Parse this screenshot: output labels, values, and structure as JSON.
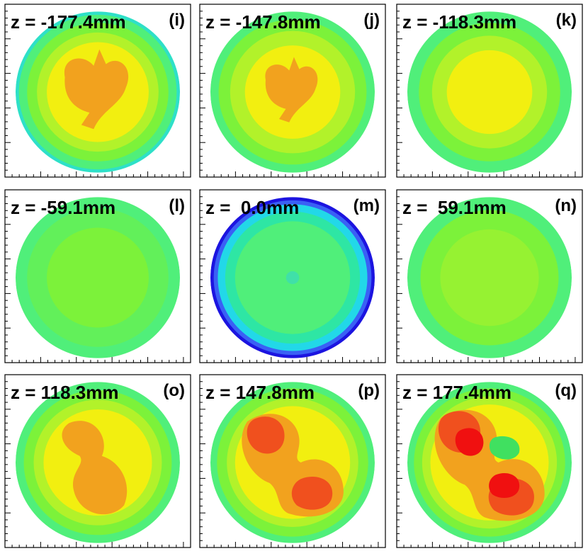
{
  "figure": "grid of 9 cross-sectional colour maps",
  "chart_data": [
    {
      "type": "heatmap",
      "label": "(i)",
      "z_text": "z = -177.4mm",
      "z_mm": -177.4,
      "layers": [
        {
          "color": "#2ee0c8",
          "r": 1.0
        },
        {
          "color": "#50ef7a",
          "r": 0.96
        },
        {
          "color": "#7cf23a",
          "r": 0.86
        },
        {
          "color": "#b2f22a",
          "r": 0.74
        },
        {
          "color": "#f2ef10",
          "r": 0.62
        },
        {
          "color": "#f2a21e",
          "blob": "heart",
          "scale": 1.0
        }
      ]
    },
    {
      "type": "heatmap",
      "label": "(j)",
      "z_text": "z = -147.8mm",
      "z_mm": -147.8,
      "layers": [
        {
          "color": "#50ef7a",
          "r": 1.0
        },
        {
          "color": "#7cf23a",
          "r": 0.9
        },
        {
          "color": "#b2f22a",
          "r": 0.76
        },
        {
          "color": "#f2ef10",
          "r": 0.58
        },
        {
          "color": "#f2a21e",
          "blob": "heart",
          "scale": 0.82
        }
      ]
    },
    {
      "type": "heatmap",
      "label": "(k)",
      "z_text": "z = -118.3mm",
      "z_mm": -118.3,
      "layers": [
        {
          "color": "#50ef7a",
          "r": 1.0
        },
        {
          "color": "#7cf23a",
          "r": 0.86
        },
        {
          "color": "#b2f22a",
          "r": 0.7
        },
        {
          "color": "#f2ef10",
          "r": 0.52
        }
      ]
    },
    {
      "type": "heatmap",
      "label": "(l)",
      "z_text": "z = -59.1mm",
      "z_mm": -59.1,
      "layers": [
        {
          "color": "#50ef7a",
          "r": 1.0
        },
        {
          "color": "#62f05a",
          "r": 0.86
        },
        {
          "color": "#7cf23a",
          "r": 0.62
        }
      ]
    },
    {
      "type": "heatmap",
      "label": "(m)",
      "z_text": "z =  0.0mm",
      "z_mm": 0.0,
      "layers": [
        {
          "color": "#1c14e0",
          "r": 1.0
        },
        {
          "color": "#3a60f5",
          "r": 0.96
        },
        {
          "color": "#22d8e8",
          "r": 0.91
        },
        {
          "color": "#2ee6a4",
          "r": 0.82
        },
        {
          "color": "#50ef7a",
          "r": 0.7
        },
        {
          "color": "#40e0a8",
          "r": 0.08
        }
      ]
    },
    {
      "type": "heatmap",
      "label": "(n)",
      "z_text": "z =  59.1mm",
      "z_mm": 59.1,
      "layers": [
        {
          "color": "#50ef7a",
          "r": 1.0
        },
        {
          "color": "#7cf23a",
          "r": 0.84
        },
        {
          "color": "#96f232",
          "r": 0.6
        }
      ]
    },
    {
      "type": "heatmap",
      "label": "(o)",
      "z_text": "z = 118.3mm",
      "z_mm": 118.3,
      "layers": [
        {
          "color": "#50ef7a",
          "r": 1.0
        },
        {
          "color": "#7cf23a",
          "r": 0.9
        },
        {
          "color": "#b2f22a",
          "r": 0.78
        },
        {
          "color": "#f2ef10",
          "r": 0.66
        },
        {
          "color": "#f2a21e",
          "blob": "peanut",
          "scale": 1.0
        }
      ]
    },
    {
      "type": "heatmap",
      "label": "(p)",
      "z_text": "z = 147.8mm",
      "z_mm": 147.8,
      "layers": [
        {
          "color": "#50ef7a",
          "r": 1.0
        },
        {
          "color": "#7cf23a",
          "r": 0.92
        },
        {
          "color": "#b2f22a",
          "r": 0.8
        },
        {
          "color": "#f2ef10",
          "r": 0.7
        },
        {
          "color": "#f2a21e",
          "blob": "pac",
          "scale": 1.0
        },
        {
          "color": "#f0501e",
          "blob": "twin",
          "scale": 1.0
        }
      ]
    },
    {
      "type": "heatmap",
      "label": "(q)",
      "z_text": "z = 177.4mm",
      "z_mm": 177.4,
      "layers": [
        {
          "color": "#50ef7a",
          "r": 1.0
        },
        {
          "color": "#7cf23a",
          "r": 0.92
        },
        {
          "color": "#b2f22a",
          "r": 0.82
        },
        {
          "color": "#f2ef10",
          "r": 0.72
        },
        {
          "color": "#f2a21e",
          "blob": "pac",
          "scale": 1.08
        },
        {
          "color": "#f0501e",
          "blob": "twin",
          "scale": 1.12
        },
        {
          "color": "#f01010",
          "blob": "twin",
          "scale": 0.75
        },
        {
          "color": "#40e060",
          "blob": "hole",
          "scale": 1.0
        }
      ]
    }
  ]
}
